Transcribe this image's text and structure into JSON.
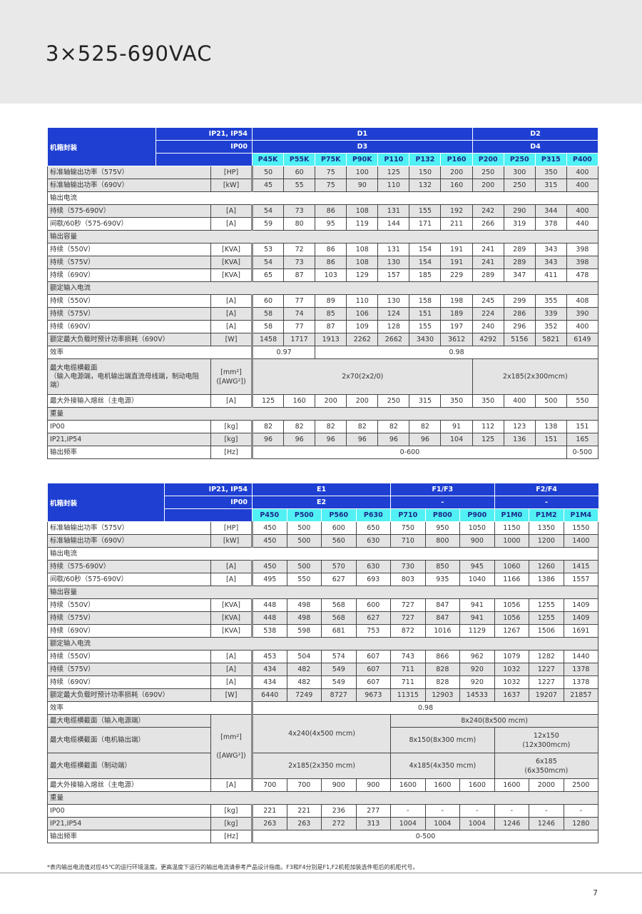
{
  "title": "3×525-690VAC",
  "colors": {
    "header": "#1e3fd2",
    "model": "#50f0f4",
    "shade": "#e4e4e4"
  },
  "tables": [
    {
      "header": {
        "label": "机箱封装",
        "row1_label": "IP21, IP54",
        "row2_label": "IP00",
        "row1": [
          {
            "text": "D1",
            "span": 7
          },
          {
            "text": "D2",
            "span": 4
          }
        ],
        "row2": [
          {
            "text": "D3",
            "span": 7
          },
          {
            "text": "D4",
            "span": 4
          }
        ],
        "models": [
          "P45K",
          "P55K",
          "P75K",
          "P90K",
          "P110",
          "P132",
          "P160",
          "P200",
          "P250",
          "P315",
          "P400"
        ]
      },
      "rows": [
        {
          "label": "标准轴输出功率（575V）",
          "unit": "[HP]",
          "shaded": true,
          "cells": [
            "50",
            "60",
            "75",
            "100",
            "125",
            "150",
            "200",
            "250",
            "300",
            "350",
            "400"
          ]
        },
        {
          "label": "标准轴输出功率（690V）",
          "unit": "[kW]",
          "shaded": true,
          "cells": [
            "45",
            "55",
            "75",
            "90",
            "110",
            "132",
            "160",
            "200",
            "250",
            "315",
            "400"
          ]
        },
        {
          "label": "输出电流",
          "section": true
        },
        {
          "label": "持续（575-690V）",
          "unit": "[A]",
          "shaded": true,
          "cells": [
            "54",
            "73",
            "86",
            "108",
            "131",
            "155",
            "192",
            "242",
            "290",
            "344",
            "400"
          ]
        },
        {
          "label": "间歇/60秒（575-690V）",
          "unit": "[A]",
          "cells": [
            "59",
            "80",
            "95",
            "119",
            "144",
            "171",
            "211",
            "266",
            "319",
            "378",
            "440"
          ]
        },
        {
          "label": "输出容量",
          "section": true,
          "shaded": true
        },
        {
          "label": "持续（550V）",
          "unit": "[KVA]",
          "cells": [
            "53",
            "72",
            "86",
            "108",
            "131",
            "154",
            "191",
            "241",
            "289",
            "343",
            "398"
          ]
        },
        {
          "label": "持续（575V）",
          "unit": "[KVA]",
          "shaded": true,
          "cells": [
            "54",
            "73",
            "86",
            "108",
            "130",
            "154",
            "191",
            "241",
            "289",
            "343",
            "398"
          ]
        },
        {
          "label": "持续（690V）",
          "unit": "[KVA]",
          "cells": [
            "65",
            "87",
            "103",
            "129",
            "157",
            "185",
            "229",
            "289",
            "347",
            "411",
            "478"
          ]
        },
        {
          "label": "额定输入电流",
          "section": true,
          "shaded": true
        },
        {
          "label": "持续（550V）",
          "unit": "[A]",
          "cells": [
            "60",
            "77",
            "89",
            "110",
            "130",
            "158",
            "198",
            "245",
            "299",
            "355",
            "408"
          ]
        },
        {
          "label": "持续（575V）",
          "unit": "[A]",
          "shaded": true,
          "cells": [
            "58",
            "74",
            "85",
            "106",
            "124",
            "151",
            "189",
            "224",
            "286",
            "339",
            "390"
          ]
        },
        {
          "label": "持续（690V）",
          "unit": "[A]",
          "cells": [
            "58",
            "77",
            "87",
            "109",
            "128",
            "155",
            "197",
            "240",
            "296",
            "352",
            "400"
          ]
        },
        {
          "label": "额定最大负载时预计功率损耗（690V）",
          "unit": "[W]",
          "shaded": true,
          "cells": [
            "1458",
            "1717",
            "1913",
            "2262",
            "2662",
            "3430",
            "3612",
            "4292",
            "5156",
            "5821",
            "6149"
          ]
        },
        {
          "label": "效率",
          "no_unit": true,
          "cells": [
            {
              "text": "0.97",
              "span": 2
            },
            {
              "text": "0.98",
              "span": 9
            }
          ]
        },
        {
          "label": "最大电缆横截面\n（输入电源端，电机输出端直流母线端，制动电阻端）",
          "unit": "[mm²]\n([AWG²])",
          "shaded": true,
          "tall": true,
          "cells": [
            {
              "text": "2x70(2x2/0)",
              "span": 7
            },
            {
              "text": "2x185(2x300mcm)",
              "span": 4
            }
          ]
        },
        {
          "label": "最大外接输入熔丝（主电源）",
          "unit": "[A]",
          "cells": [
            "125",
            "160",
            "200",
            "200",
            "250",
            "315",
            "350",
            "350",
            "400",
            "500",
            "550"
          ]
        },
        {
          "label": "重量",
          "section": true,
          "shaded": true
        },
        {
          "label": "IP00",
          "unit": "[kg]",
          "cells": [
            "82",
            "82",
            "82",
            "82",
            "82",
            "82",
            "91",
            "112",
            "123",
            "138",
            "151"
          ]
        },
        {
          "label": "IP21,IP54",
          "unit": "[kg]",
          "shaded": true,
          "cells": [
            "96",
            "96",
            "96",
            "96",
            "96",
            "96",
            "104",
            "125",
            "136",
            "151",
            "165"
          ]
        },
        {
          "label": "输出频率",
          "unit": "[Hz]",
          "cells": [
            {
              "text": "0-600",
              "span": 10
            },
            {
              "text": "0-500",
              "span": 1
            }
          ]
        }
      ]
    },
    {
      "header": {
        "label": "机箱封装",
        "row1_label": "IP21, IP54",
        "row2_label": "IP00",
        "row1": [
          {
            "text": "E1",
            "span": 4
          },
          {
            "text": "F1/F3",
            "span": 3
          },
          {
            "text": "F2/F4",
            "span": 3
          }
        ],
        "row2": [
          {
            "text": "E2",
            "span": 4
          },
          {
            "text": "-",
            "span": 3
          },
          {
            "text": "-",
            "span": 3
          }
        ],
        "models": [
          "P450",
          "P500",
          "P560",
          "P630",
          "P710",
          "P800",
          "P900",
          "P1M0",
          "P1M2",
          "P1M4"
        ]
      },
      "rows": [
        {
          "label": "标准轴输出功率（575V）",
          "unit": "[HP]",
          "cells": [
            "450",
            "500",
            "600",
            "650",
            "750",
            "950",
            "1050",
            "1150",
            "1350",
            "1550"
          ]
        },
        {
          "label": "标准轴输出功率（690V）",
          "unit": "[kW]",
          "shaded": true,
          "cells": [
            "450",
            "500",
            "560",
            "630",
            "710",
            "800",
            "900",
            "1000",
            "1200",
            "1400"
          ]
        },
        {
          "label": "输出电流",
          "section": true
        },
        {
          "label": "持续（575-690V）",
          "unit": "[A]",
          "shaded": true,
          "cells": [
            "450",
            "500",
            "570",
            "630",
            "730",
            "850",
            "945",
            "1060",
            "1260",
            "1415"
          ]
        },
        {
          "label": "间歇/60秒（575-690V）",
          "unit": "[A]",
          "cells": [
            "495",
            "550",
            "627",
            "693",
            "803",
            "935",
            "1040",
            "1166",
            "1386",
            "1557"
          ]
        },
        {
          "label": "输出容量",
          "section": true,
          "shaded": true
        },
        {
          "label": "持续（550V）",
          "unit": "[KVA]",
          "cells": [
            "448",
            "498",
            "568",
            "600",
            "727",
            "847",
            "941",
            "1056",
            "1255",
            "1409"
          ]
        },
        {
          "label": "持续（575V）",
          "unit": "[KVA]",
          "shaded": true,
          "cells": [
            "448",
            "498",
            "568",
            "627",
            "727",
            "847",
            "941",
            "1056",
            "1255",
            "1409"
          ]
        },
        {
          "label": "持续（690V）",
          "unit": "[KVA]",
          "cells": [
            "538",
            "598",
            "681",
            "753",
            "872",
            "1016",
            "1129",
            "1267",
            "1506",
            "1691"
          ]
        },
        {
          "label": "额定输入电流",
          "section": true,
          "shaded": true
        },
        {
          "label": "持续（550V）",
          "unit": "[A]",
          "cells": [
            "453",
            "504",
            "574",
            "607",
            "743",
            "866",
            "962",
            "1079",
            "1282",
            "1440"
          ]
        },
        {
          "label": "持续（575V）",
          "unit": "[A]",
          "shaded": true,
          "cells": [
            "434",
            "482",
            "549",
            "607",
            "711",
            "828",
            "920",
            "1032",
            "1227",
            "1378"
          ]
        },
        {
          "label": "持续（690V）",
          "unit": "[A]",
          "cells": [
            "434",
            "482",
            "549",
            "607",
            "711",
            "828",
            "920",
            "1032",
            "1227",
            "1378"
          ]
        },
        {
          "label": "额定最大负载时预计功率损耗（690V）",
          "unit": "[W]",
          "shaded": true,
          "cells": [
            "6440",
            "7249",
            "8727",
            "9673",
            "11315",
            "12903",
            "14533",
            "1637",
            "19207",
            "21857"
          ]
        },
        {
          "label": "效率",
          "no_unit": true,
          "cells": [
            {
              "text": "0.98",
              "span": 10
            }
          ]
        },
        {
          "label": "最大电缆横截面（输入电源端）",
          "unit": "[mm²]\n\n([AWG²])",
          "unit_rows": 3,
          "shaded": true,
          "cells": [
            {
              "text": "4x240(4x500 mcm)",
              "span": 4,
              "rows": 2
            },
            {
              "text": "8x240(8x500 mcm)",
              "span": 6
            }
          ]
        },
        {
          "label": "最大电缆横截面（电机输出端）",
          "skip_unit": true,
          "shaded": true,
          "tall": true,
          "cells": [
            {
              "text": "8x150(8x300 mcm)",
              "span": 3
            },
            {
              "text": "12x150\n(12x300mcm)",
              "span": 3
            }
          ]
        },
        {
          "label": "最大电缆横截面（制动端）",
          "skip_unit": true,
          "shaded": true,
          "tall": true,
          "cells": [
            {
              "text": "2x185(2x350 mcm)",
              "span": 4
            },
            {
              "text": "4x185(4x350 mcm)",
              "span": 3
            },
            {
              "text": "6x185\n(6x350mcm)",
              "span": 3
            }
          ]
        },
        {
          "label": "最大外接输入熔丝（主电源）",
          "unit": "[A]",
          "cells": [
            "700",
            "700",
            "900",
            "900",
            "1600",
            "1600",
            "1600",
            "1600",
            "2000",
            "2500"
          ]
        },
        {
          "label": "重量",
          "section": true,
          "shaded": true
        },
        {
          "label": "IP00",
          "unit": "[kg]",
          "cells": [
            "221",
            "221",
            "236",
            "277",
            "-",
            "-",
            "-",
            "-",
            "-",
            "-"
          ]
        },
        {
          "label": "IP21,IP54",
          "unit": "[kg]",
          "shaded": true,
          "cells": [
            "263",
            "263",
            "272",
            "313",
            "1004",
            "1004",
            "1004",
            "1246",
            "1246",
            "1280"
          ]
        },
        {
          "label": "输出频率",
          "unit": "[Hz]",
          "cells": [
            {
              "text": "0-500",
              "span": 10
            }
          ]
        }
      ]
    }
  ],
  "footnote": "*表内输出电流值对应45℃的运行环境温度。更高温度下运行的输出电流请参考产品设计指南。F3和F4分别是F1,F2机柜加装选件柜后的机柜代号。",
  "page_number": "7"
}
